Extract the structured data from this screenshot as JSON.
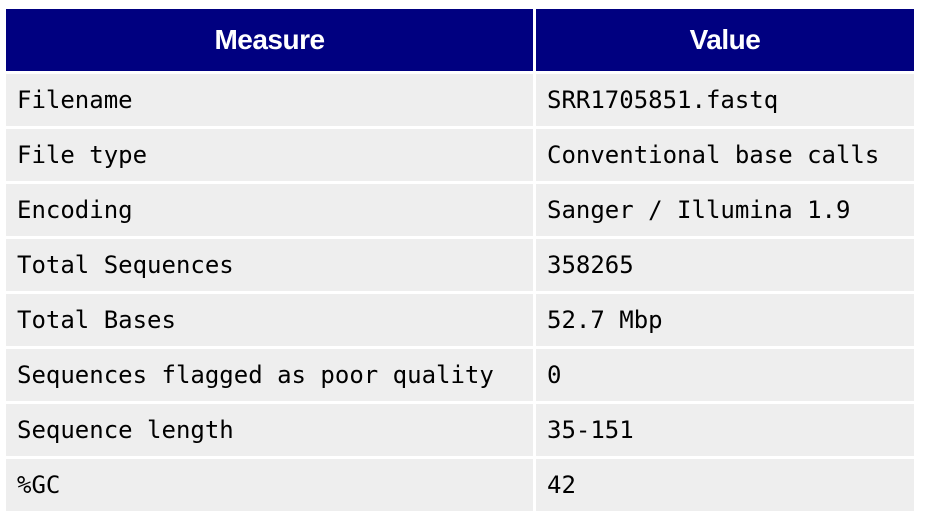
{
  "table": {
    "headers": {
      "measure": "Measure",
      "value": "Value"
    },
    "rows": [
      {
        "measure": "Filename",
        "value": "SRR1705851.fastq"
      },
      {
        "measure": "File type",
        "value": "Conventional base calls"
      },
      {
        "measure": "Encoding",
        "value": "Sanger / Illumina 1.9"
      },
      {
        "measure": "Total Sequences",
        "value": "358265"
      },
      {
        "measure": "Total Bases",
        "value": "52.7 Mbp"
      },
      {
        "measure": "Sequences flagged as poor quality",
        "value": "0"
      },
      {
        "measure": "Sequence length",
        "value": "35-151"
      },
      {
        "measure": "%GC",
        "value": "42"
      }
    ]
  },
  "colors": {
    "header_background": "#000080",
    "header_text": "#ffffff",
    "cell_background": "#eeeeee"
  }
}
